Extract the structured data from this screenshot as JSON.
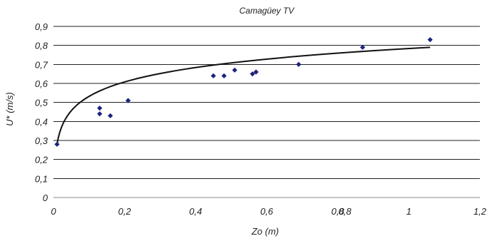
{
  "chart_data": {
    "type": "scatter",
    "title": "Camagüey TV",
    "xlabel": "Zo (m)",
    "ylabel": "U* (m/s)",
    "xlim": [
      0,
      1.2
    ],
    "ylim": [
      0,
      0.9
    ],
    "x_ticks": [
      "0",
      "0,2",
      "0,4",
      "0,6",
      "0,8",
      "1",
      "1,2"
    ],
    "y_ticks": [
      "0",
      "0,1",
      "0,2",
      "0,3",
      "0,4",
      "0,5",
      "0,6",
      "0,7",
      "0,8",
      "0,9"
    ],
    "extra_labels": [
      {
        "text": "0,8",
        "x": 0.8
      }
    ],
    "grid": "horizontal",
    "series": [
      {
        "type": "scatter",
        "x": [
          0.01,
          0.13,
          0.13,
          0.16,
          0.21,
          0.45,
          0.48,
          0.51,
          0.56,
          0.57,
          0.69,
          0.87,
          1.06
        ],
        "y": [
          0.28,
          0.47,
          0.44,
          0.43,
          0.51,
          0.64,
          0.64,
          0.67,
          0.65,
          0.66,
          0.7,
          0.79,
          0.83
        ]
      },
      {
        "type": "trendline",
        "model": "logarithmic",
        "x": [
          0.01,
          1.06
        ],
        "y": [
          0.28,
          0.79
        ]
      }
    ]
  }
}
